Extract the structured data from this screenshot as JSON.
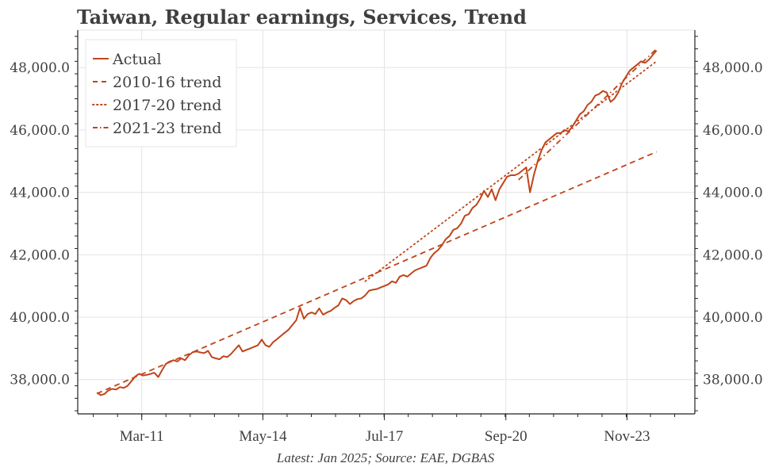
{
  "chart_data": {
    "type": "line",
    "title": "Taiwan, Regular earnings, Services, Trend",
    "caption": "Latest: Jan 2025; Source: EAE, DGBAS",
    "xlabel": "",
    "ylabel": "",
    "x_range": [
      2009.5,
      2025.6
    ],
    "ylim": [
      36900,
      49200
    ],
    "y_ticks": [
      38000,
      40000,
      42000,
      44000,
      46000,
      48000
    ],
    "y_tick_labels": [
      "38,000.0",
      "40,000.0",
      "42,000.0",
      "44,000.0",
      "46,000.0",
      "48,000.0"
    ],
    "x_ticks": [
      2011.17,
      2014.33,
      2017.5,
      2020.67,
      2023.83
    ],
    "x_tick_labels": [
      "Mar-11",
      "May-14",
      "Jul-17",
      "Sep-20",
      "Nov-23"
    ],
    "grid": true,
    "legend_position": "top-left",
    "colors": {
      "line": "#c0441a",
      "grid": "#e3e3e3",
      "axis": "#222222",
      "text": "#404040"
    },
    "series": [
      {
        "name": "Actual",
        "style": "solid",
        "points": [
          [
            2010.0,
            37580
          ],
          [
            2010.1,
            37500
          ],
          [
            2010.2,
            37540
          ],
          [
            2010.3,
            37650
          ],
          [
            2010.4,
            37700
          ],
          [
            2010.5,
            37680
          ],
          [
            2010.6,
            37760
          ],
          [
            2010.7,
            37730
          ],
          [
            2010.8,
            37800
          ],
          [
            2010.9,
            37950
          ],
          [
            2011.0,
            38100
          ],
          [
            2011.1,
            38180
          ],
          [
            2011.2,
            38130
          ],
          [
            2011.3,
            38150
          ],
          [
            2011.4,
            38180
          ],
          [
            2011.5,
            38220
          ],
          [
            2011.6,
            38080
          ],
          [
            2011.7,
            38300
          ],
          [
            2011.8,
            38500
          ],
          [
            2011.9,
            38580
          ],
          [
            2012.0,
            38620
          ],
          [
            2012.1,
            38580
          ],
          [
            2012.2,
            38680
          ],
          [
            2012.3,
            38620
          ],
          [
            2012.4,
            38780
          ],
          [
            2012.5,
            38880
          ],
          [
            2012.6,
            38900
          ],
          [
            2012.7,
            38870
          ],
          [
            2012.8,
            38850
          ],
          [
            2012.9,
            38920
          ],
          [
            2013.0,
            38720
          ],
          [
            2013.1,
            38680
          ],
          [
            2013.2,
            38650
          ],
          [
            2013.3,
            38750
          ],
          [
            2013.4,
            38720
          ],
          [
            2013.5,
            38820
          ],
          [
            2013.6,
            38960
          ],
          [
            2013.7,
            39100
          ],
          [
            2013.8,
            38900
          ],
          [
            2013.9,
            38950
          ],
          [
            2014.0,
            39000
          ],
          [
            2014.1,
            39050
          ],
          [
            2014.2,
            39100
          ],
          [
            2014.3,
            39280
          ],
          [
            2014.4,
            39100
          ],
          [
            2014.5,
            39050
          ],
          [
            2014.6,
            39200
          ],
          [
            2014.7,
            39300
          ],
          [
            2014.8,
            39400
          ],
          [
            2014.9,
            39500
          ],
          [
            2015.0,
            39600
          ],
          [
            2015.1,
            39750
          ],
          [
            2015.2,
            39900
          ],
          [
            2015.3,
            40300
          ],
          [
            2015.4,
            39950
          ],
          [
            2015.5,
            40100
          ],
          [
            2015.6,
            40150
          ],
          [
            2015.7,
            40100
          ],
          [
            2015.8,
            40280
          ],
          [
            2015.9,
            40080
          ],
          [
            2016.0,
            40150
          ],
          [
            2016.1,
            40200
          ],
          [
            2016.2,
            40300
          ],
          [
            2016.3,
            40380
          ],
          [
            2016.4,
            40600
          ],
          [
            2016.5,
            40550
          ],
          [
            2016.6,
            40420
          ],
          [
            2016.7,
            40520
          ],
          [
            2016.8,
            40580
          ],
          [
            2016.9,
            40600
          ],
          [
            2017.0,
            40700
          ],
          [
            2017.1,
            40850
          ],
          [
            2017.2,
            40880
          ],
          [
            2017.3,
            40900
          ],
          [
            2017.4,
            40950
          ],
          [
            2017.5,
            41000
          ],
          [
            2017.6,
            41050
          ],
          [
            2017.7,
            41150
          ],
          [
            2017.8,
            41100
          ],
          [
            2017.9,
            41300
          ],
          [
            2018.0,
            41350
          ],
          [
            2018.1,
            41300
          ],
          [
            2018.2,
            41400
          ],
          [
            2018.3,
            41500
          ],
          [
            2018.4,
            41550
          ],
          [
            2018.5,
            41600
          ],
          [
            2018.6,
            41650
          ],
          [
            2018.7,
            41900
          ],
          [
            2018.8,
            42050
          ],
          [
            2018.9,
            42150
          ],
          [
            2019.0,
            42300
          ],
          [
            2019.1,
            42500
          ],
          [
            2019.2,
            42600
          ],
          [
            2019.3,
            42800
          ],
          [
            2019.4,
            42850
          ],
          [
            2019.5,
            43000
          ],
          [
            2019.6,
            43250
          ],
          [
            2019.7,
            43300
          ],
          [
            2019.8,
            43500
          ],
          [
            2019.9,
            43600
          ],
          [
            2020.0,
            43800
          ],
          [
            2020.1,
            44050
          ],
          [
            2020.2,
            43850
          ],
          [
            2020.3,
            44100
          ],
          [
            2020.4,
            43750
          ],
          [
            2020.5,
            44100
          ],
          [
            2020.6,
            44300
          ],
          [
            2020.7,
            44500
          ],
          [
            2020.8,
            44550
          ],
          [
            2020.9,
            44550
          ],
          [
            2021.0,
            44600
          ],
          [
            2021.1,
            44700
          ],
          [
            2021.2,
            44800
          ],
          [
            2021.3,
            44000
          ],
          [
            2021.4,
            44550
          ],
          [
            2021.5,
            45000
          ],
          [
            2021.6,
            45350
          ],
          [
            2021.7,
            45600
          ],
          [
            2021.8,
            45700
          ],
          [
            2021.9,
            45800
          ],
          [
            2022.0,
            45900
          ],
          [
            2022.1,
            45900
          ],
          [
            2022.2,
            46000
          ],
          [
            2022.3,
            45950
          ],
          [
            2022.4,
            46100
          ],
          [
            2022.5,
            46300
          ],
          [
            2022.6,
            46500
          ],
          [
            2022.7,
            46600
          ],
          [
            2022.8,
            46800
          ],
          [
            2022.9,
            46900
          ],
          [
            2023.0,
            47100
          ],
          [
            2023.1,
            47150
          ],
          [
            2023.2,
            47250
          ],
          [
            2023.3,
            47200
          ],
          [
            2023.4,
            46900
          ],
          [
            2023.5,
            47000
          ],
          [
            2023.6,
            47200
          ],
          [
            2023.7,
            47500
          ],
          [
            2023.8,
            47700
          ],
          [
            2023.9,
            47900
          ],
          [
            2024.0,
            48000
          ],
          [
            2024.1,
            48100
          ],
          [
            2024.2,
            48200
          ],
          [
            2024.3,
            48150
          ],
          [
            2024.4,
            48250
          ],
          [
            2024.5,
            48400
          ],
          [
            2024.6,
            48550
          ]
        ]
      },
      {
        "name": "2010-16 trend",
        "style": "dashed",
        "points": [
          [
            2010.0,
            37550
          ],
          [
            2024.6,
            45300
          ]
        ]
      },
      {
        "name": "2017-20 trend",
        "style": "dotted",
        "points": [
          [
            2017.0,
            41150
          ],
          [
            2024.6,
            48200
          ]
        ]
      },
      {
        "name": "2021-23 trend",
        "style": "dashdot",
        "points": [
          [
            2021.0,
            44400
          ],
          [
            2024.6,
            48600
          ]
        ]
      }
    ]
  }
}
